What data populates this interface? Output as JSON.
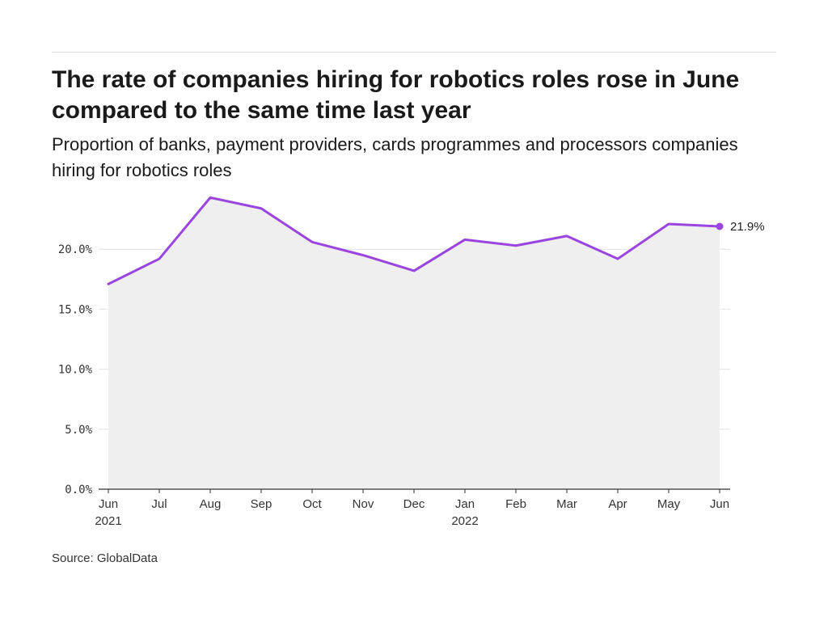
{
  "title": "The rate of companies hiring for robotics roles rose in June compared to the same time last year",
  "subtitle": "Proportion of banks, payment providers, cards programmes and processors companies hiring for robotics roles",
  "source": "Source: GlobalData",
  "colors": {
    "line": "#9b45e0",
    "area": "#efefef",
    "grid": "#e2e2e2",
    "axis": "#333333"
  },
  "chart_data": {
    "type": "line",
    "title": "The rate of companies hiring for robotics roles rose in June compared to the same time last year",
    "subtitle": "Proportion of banks, payment providers, cards programmes and processors companies hiring for robotics roles",
    "xlabel": "",
    "ylabel": "",
    "categories": [
      "Jun 2021",
      "Jul 2021",
      "Aug 2021",
      "Sep 2021",
      "Oct 2021",
      "Nov 2021",
      "Dec 2021",
      "Jan 2022",
      "Feb 2022",
      "Mar 2022",
      "Apr 2022",
      "May 2022",
      "Jun 2022"
    ],
    "x_tick_labels": [
      {
        "month": "Jun",
        "year": "2021"
      },
      {
        "month": "Jul",
        "year": ""
      },
      {
        "month": "Aug",
        "year": ""
      },
      {
        "month": "Sep",
        "year": ""
      },
      {
        "month": "Oct",
        "year": ""
      },
      {
        "month": "Nov",
        "year": ""
      },
      {
        "month": "Dec",
        "year": ""
      },
      {
        "month": "Jan",
        "year": "2022"
      },
      {
        "month": "Feb",
        "year": ""
      },
      {
        "month": "Mar",
        "year": ""
      },
      {
        "month": "Apr",
        "year": ""
      },
      {
        "month": "May",
        "year": ""
      },
      {
        "month": "Jun",
        "year": ""
      }
    ],
    "series": [
      {
        "values": [
          17.1,
          19.2,
          24.3,
          23.4,
          20.6,
          19.5,
          18.2,
          20.8,
          20.3,
          21.1,
          19.2,
          22.1,
          21.9
        ]
      }
    ],
    "y_ticks": [
      0,
      5,
      10,
      15,
      20
    ],
    "y_tick_labels": [
      "0.0%",
      "5.0%",
      "10.0%",
      "15.0%",
      "20.0%"
    ],
    "ylim": [
      0,
      25
    ],
    "end_label": "21.9%",
    "grid": true,
    "area_fill": true
  }
}
